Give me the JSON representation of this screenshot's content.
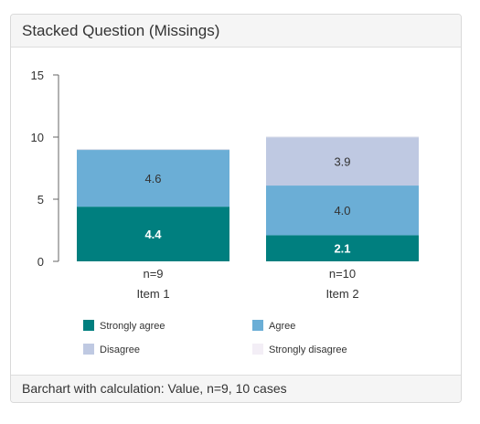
{
  "panel": {
    "title": "Stacked Question (Missings)",
    "footer": "Barchart with calculation: Value, n=9, 10 cases"
  },
  "chart_data": {
    "type": "bar",
    "stacked": true,
    "categories": [
      "Item 1",
      "Item 2"
    ],
    "category_counts": [
      "n=9",
      "n=10"
    ],
    "series": [
      {
        "name": "Strongly agree",
        "color": "#007f7f",
        "label_color": "#ffffff",
        "values": [
          4.4,
          2.1
        ]
      },
      {
        "name": "Agree",
        "color": "#6baed6",
        "label_color": "#333333",
        "values": [
          4.6,
          4.0
        ]
      },
      {
        "name": "Disagree",
        "color": "#bfc9e2",
        "label_color": "#333333",
        "values": [
          0.0,
          3.9
        ]
      },
      {
        "name": "Strongly disagree",
        "color": "#f3eef6",
        "label_color": "#333333",
        "values": [
          0.0,
          0.0
        ]
      }
    ],
    "y_ticks": [
      0,
      5,
      10,
      15
    ],
    "ylim": [
      0,
      15
    ],
    "grid": false,
    "legend_position": "bottom"
  }
}
